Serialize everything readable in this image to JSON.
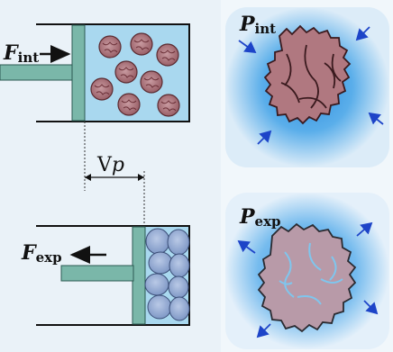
{
  "labels": {
    "f_int": {
      "main": "F",
      "sub": "int"
    },
    "f_exp": {
      "main": "F",
      "sub": "exp"
    },
    "p_int": {
      "main": "P",
      "sub": "int"
    },
    "p_exp": {
      "main": "P",
      "sub": "exp"
    },
    "delta_v": {
      "main": "V",
      "var": "p"
    }
  },
  "colors": {
    "background_left": "#e8f1f8",
    "chamber_fill": "#a9d8ef",
    "piston": "#7ab7a9",
    "particle_fill": "#b58088",
    "particle_dark": "#6b3038",
    "swollen_particle": "#8ea7cf",
    "cell_int": "#b07880",
    "cell_exp": "#b89aa8",
    "arrow_blue": "#1d44c8",
    "glow": "#4da3e8"
  }
}
